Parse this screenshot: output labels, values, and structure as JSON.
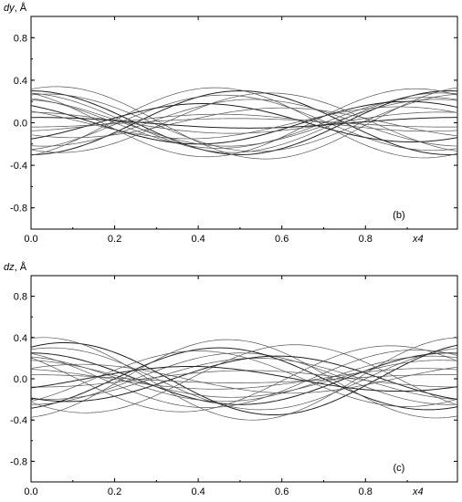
{
  "chart_data": [
    {
      "type": "line",
      "panel_label": "(b)",
      "ylabel": "dy",
      "yunit": ", Å",
      "xlabel": "x4",
      "xlim": [
        0.0,
        1.02
      ],
      "ylim": [
        -1.0,
        1.0
      ],
      "xticks": [
        "0.0",
        "0.2",
        "0.4",
        "0.6",
        "0.8"
      ],
      "yticks": [
        "0.8",
        "0.4",
        "0.0",
        "-0.4",
        "-0.8"
      ],
      "ytick_values": [
        0.8,
        0.4,
        0.0,
        -0.4,
        -0.8
      ],
      "xtick_values": [
        0.0,
        0.2,
        0.4,
        0.6,
        0.8
      ],
      "grid": false,
      "line_color": "#555555",
      "series": [
        {
          "amp": 0.3,
          "phase": 0.0
        },
        {
          "amp": 0.28,
          "phase": 0.02
        },
        {
          "amp": 0.24,
          "phase": 0.05
        },
        {
          "amp": 0.32,
          "phase": 0.08
        },
        {
          "amp": 0.2,
          "phase": 0.1
        },
        {
          "amp": 0.27,
          "phase": -0.04
        },
        {
          "amp": 0.34,
          "phase": -0.06
        },
        {
          "amp": 0.22,
          "phase": 0.03
        },
        {
          "amp": -0.3,
          "phase": 0.0
        },
        {
          "amp": -0.26,
          "phase": 0.04
        },
        {
          "amp": -0.22,
          "phase": -0.03
        },
        {
          "amp": -0.33,
          "phase": 0.06
        },
        {
          "amp": -0.18,
          "phase": 0.09
        },
        {
          "amp": -0.28,
          "phase": -0.07
        },
        {
          "amp": 0.1,
          "phase": 0.02
        },
        {
          "amp": -0.08,
          "phase": 0.05
        },
        {
          "amp": 0.05,
          "phase": -0.02
        },
        {
          "amp": -0.04,
          "phase": 0.01
        },
        {
          "amp": 0.15,
          "phase": 0.12
        },
        {
          "amp": -0.14,
          "phase": -0.1
        }
      ]
    },
    {
      "type": "line",
      "panel_label": "(c)",
      "ylabel": "dz",
      "yunit": ", Å",
      "xlabel": "x4",
      "xlim": [
        0.0,
        1.02
      ],
      "ylim": [
        -1.0,
        1.0
      ],
      "xticks": [
        "0.0",
        "0.2",
        "0.4",
        "0.6",
        "0.8"
      ],
      "yticks": [
        "0.8",
        "0.4",
        "0.0",
        "-0.4",
        "-0.8"
      ],
      "ytick_values": [
        0.8,
        0.4,
        0.0,
        -0.4,
        -0.8
      ],
      "xtick_values": [
        0.0,
        0.2,
        0.4,
        0.6,
        0.8
      ],
      "grid": false,
      "line_color": "#555555",
      "series": [
        {
          "amp": 0.25,
          "phase": 0.0
        },
        {
          "amp": 0.3,
          "phase": -0.05
        },
        {
          "amp": 0.22,
          "phase": 0.04
        },
        {
          "amp": 0.28,
          "phase": 0.08
        },
        {
          "amp": 0.35,
          "phase": -0.08
        },
        {
          "amp": 0.18,
          "phase": 0.02
        },
        {
          "amp": 0.4,
          "phase": -0.03
        },
        {
          "amp": -0.25,
          "phase": 0.0
        },
        {
          "amp": -0.3,
          "phase": 0.05
        },
        {
          "amp": -0.2,
          "phase": -0.04
        },
        {
          "amp": -0.38,
          "phase": 0.03
        },
        {
          "amp": -0.27,
          "phase": 0.1
        },
        {
          "amp": -0.22,
          "phase": -0.09
        },
        {
          "amp": 0.1,
          "phase": 0.06
        },
        {
          "amp": -0.08,
          "phase": -0.02
        },
        {
          "amp": 0.04,
          "phase": 0.01
        },
        {
          "amp": -0.12,
          "phase": 0.12
        },
        {
          "amp": 0.14,
          "phase": -0.12
        },
        {
          "amp": 0.32,
          "phase": 0.14
        },
        {
          "amp": -0.33,
          "phase": -0.13
        }
      ]
    }
  ]
}
